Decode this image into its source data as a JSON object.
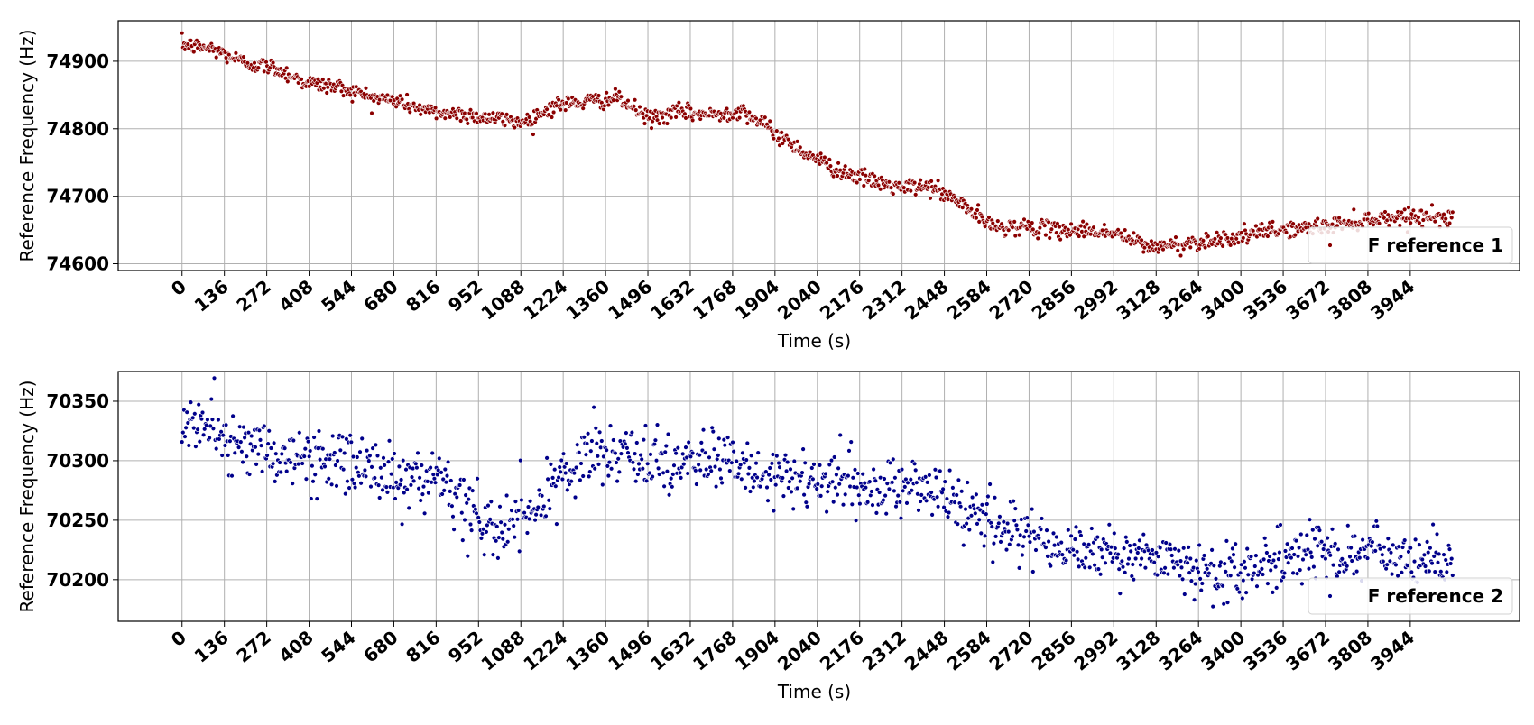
{
  "chart_data": [
    {
      "type": "scatter",
      "xlabel": "Time (s)",
      "ylabel": "Reference Frequency (Hz)",
      "x_ticks": [
        0,
        136,
        272,
        408,
        544,
        680,
        816,
        952,
        1088,
        1224,
        1360,
        1496,
        1632,
        1768,
        1904,
        2040,
        2176,
        2312,
        2448,
        2584,
        2720,
        2856,
        2992,
        3128,
        3264,
        3400,
        3536,
        3672,
        3808,
        3944
      ],
      "y_ticks": [
        74600,
        74700,
        74800,
        74900
      ],
      "xlim": [
        -205,
        4295
      ],
      "ylim": [
        74590,
        74960
      ],
      "grid": true,
      "legend_position": "lower-right",
      "series": [
        {
          "name": "F reference 1",
          "color": "#8b0000",
          "x": [
            0,
            100,
            200,
            300,
            400,
            500,
            600,
            700,
            800,
            900,
            1000,
            1100,
            1200,
            1300,
            1400,
            1500,
            1600,
            1700,
            1800,
            1900,
            2000,
            2100,
            2200,
            2300,
            2400,
            2500,
            2600,
            2700,
            2800,
            2900,
            3000,
            3100,
            3200,
            3300,
            3400,
            3500,
            3600,
            3700,
            3800,
            3900,
            4000,
            4080
          ],
          "y": [
            74925,
            74918,
            74898,
            74890,
            74868,
            74862,
            74848,
            74840,
            74825,
            74822,
            74815,
            74810,
            74835,
            74840,
            74845,
            74815,
            74825,
            74820,
            74828,
            74795,
            74765,
            74740,
            74725,
            74712,
            74715,
            74690,
            74655,
            74655,
            74650,
            74650,
            74645,
            74625,
            74628,
            74635,
            74640,
            74650,
            74652,
            74658,
            74665,
            74670,
            74670,
            74667
          ],
          "spread": 8,
          "point_count": 1300
        }
      ],
      "legend_entries": [
        "F reference 1"
      ]
    },
    {
      "type": "scatter",
      "xlabel": "Time (s)",
      "ylabel": "Reference Frequency (Hz)",
      "x_ticks": [
        0,
        136,
        272,
        408,
        544,
        680,
        816,
        952,
        1088,
        1224,
        1360,
        1496,
        1632,
        1768,
        1904,
        2040,
        2176,
        2312,
        2448,
        2584,
        2720,
        2856,
        2992,
        3128,
        3264,
        3400,
        3536,
        3672,
        3808,
        3944
      ],
      "y_ticks": [
        70200,
        70250,
        70300,
        70350
      ],
      "xlim": [
        -205,
        4295
      ],
      "ylim": [
        70165,
        70375
      ],
      "grid": true,
      "legend_position": "lower-right",
      "series": [
        {
          "name": "F reference 2",
          "color": "#00008b",
          "x": [
            0,
            100,
            200,
            300,
            400,
            500,
            600,
            700,
            800,
            900,
            1000,
            1100,
            1200,
            1300,
            1400,
            1500,
            1600,
            1700,
            1800,
            1900,
            2000,
            2100,
            2200,
            2300,
            2400,
            2500,
            2600,
            2700,
            2800,
            2900,
            3000,
            3100,
            3200,
            3300,
            3400,
            3500,
            3600,
            3700,
            3800,
            3900,
            4000,
            4080
          ],
          "y": [
            70335,
            70325,
            70312,
            70305,
            70300,
            70300,
            70295,
            70285,
            70278,
            70265,
            70240,
            70250,
            70280,
            70305,
            70305,
            70300,
            70300,
            70302,
            70290,
            70285,
            70280,
            70283,
            70275,
            70278,
            70280,
            70260,
            70250,
            70240,
            70225,
            70225,
            70225,
            70218,
            70212,
            70205,
            70205,
            70215,
            70218,
            70225,
            70225,
            70218,
            70215,
            70215
          ],
          "spread": 17,
          "point_count": 1300
        }
      ],
      "legend_entries": [
        "F reference 2"
      ]
    }
  ]
}
